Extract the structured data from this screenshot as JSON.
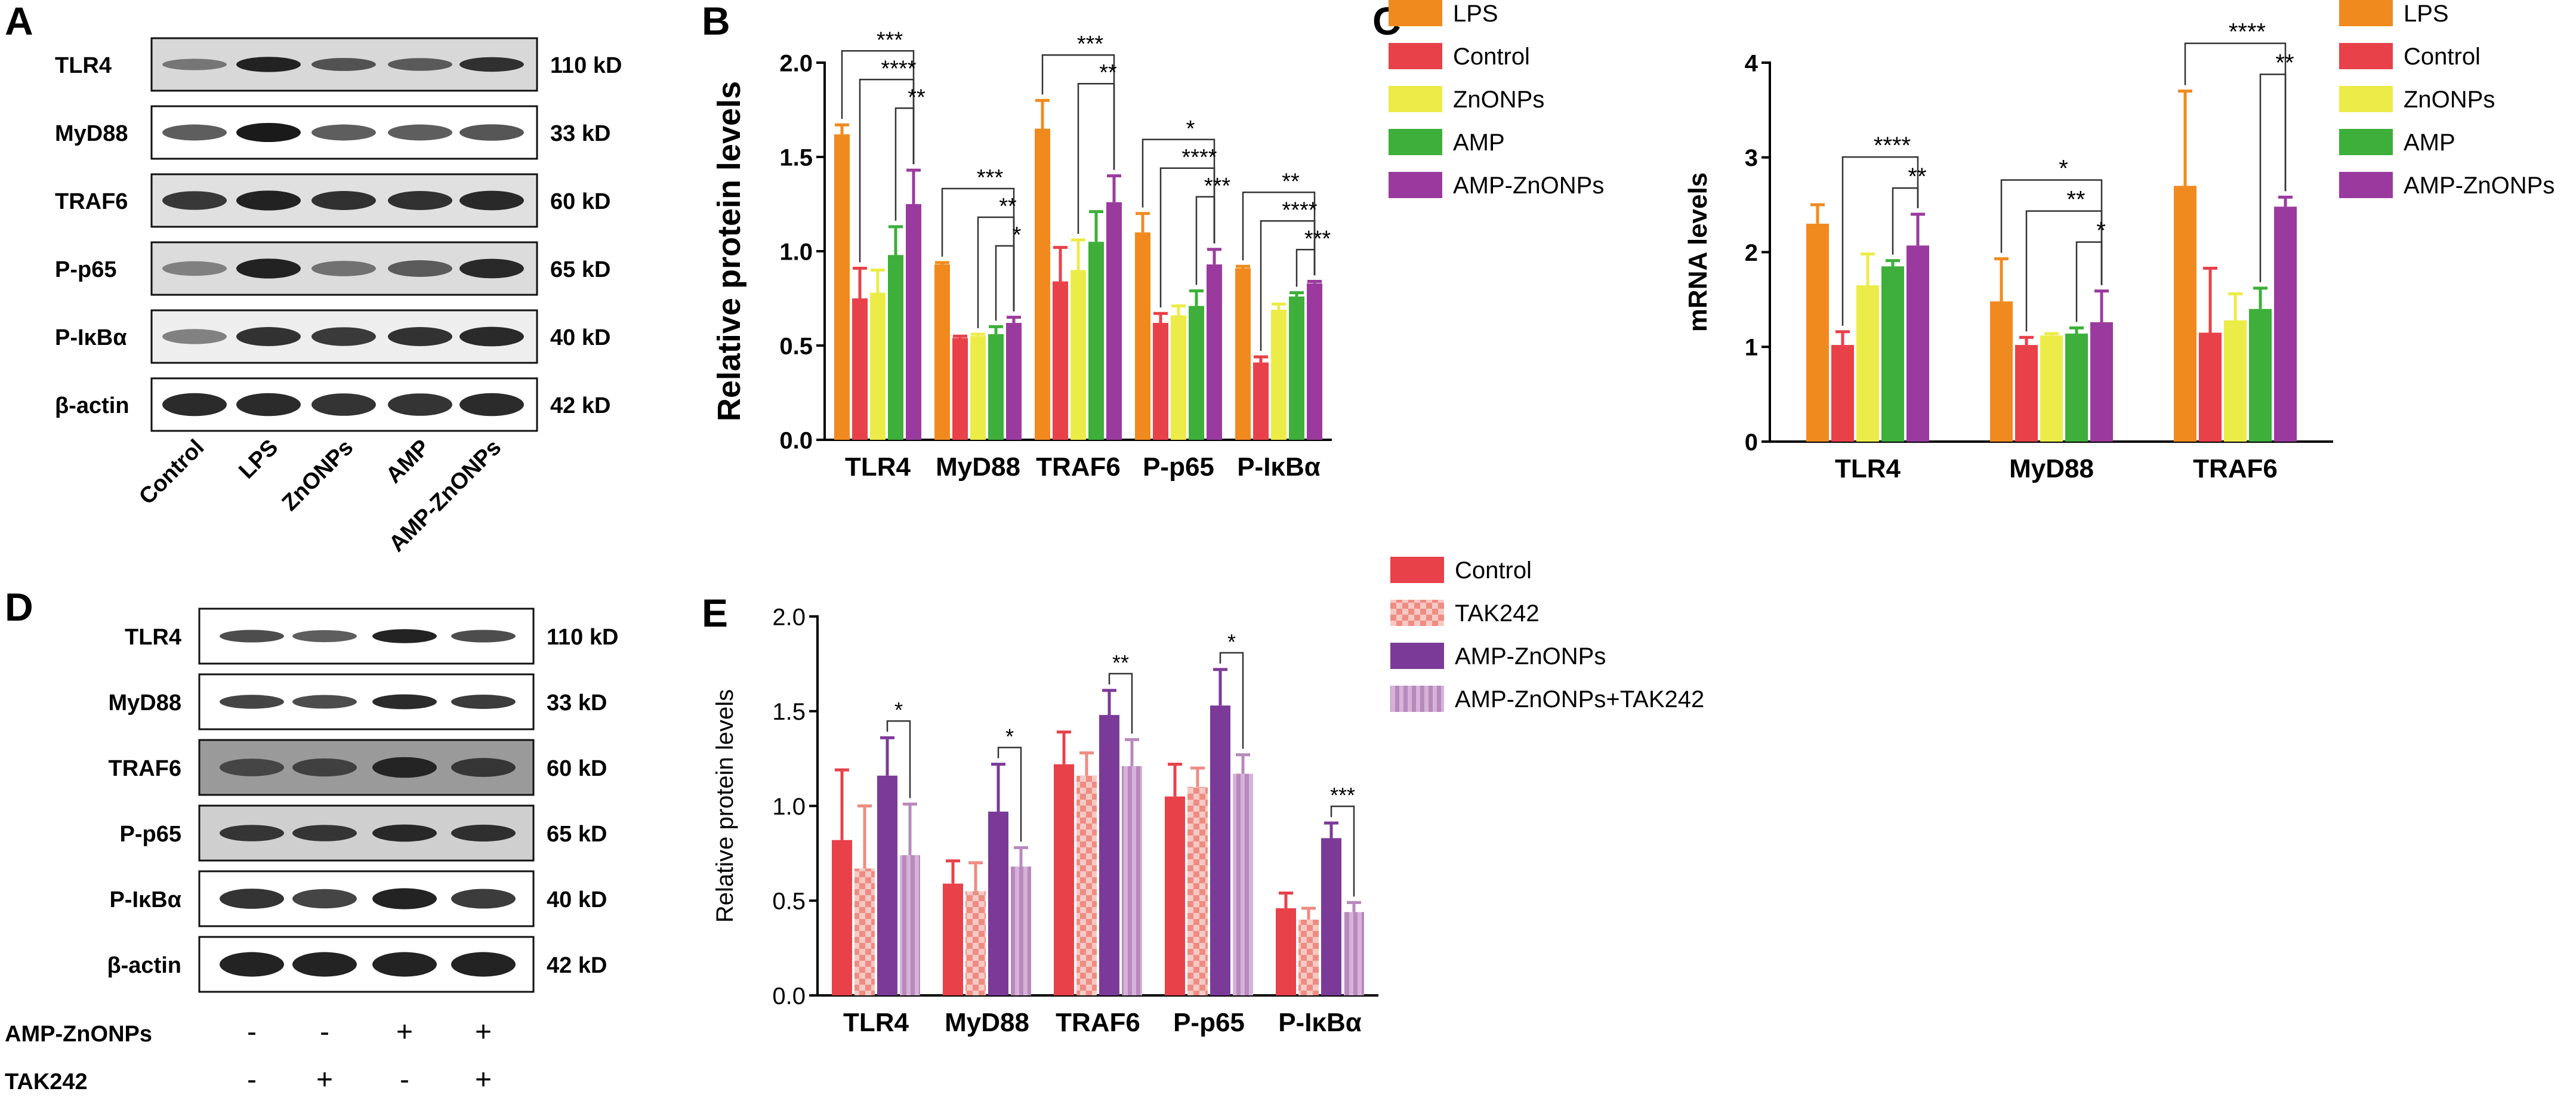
{
  "panels": {
    "A": {
      "letter": "A",
      "rows": [
        {
          "name": "TLR4",
          "size": "110 kD"
        },
        {
          "name": "MyD88",
          "size": "33 kD"
        },
        {
          "name": "TRAF6",
          "size": "60 kD"
        },
        {
          "name": "P-p65",
          "size": "65 kD"
        },
        {
          "name": "P-IκBα",
          "size": "40 kD"
        },
        {
          "name": "β-actin",
          "size": "42 kD"
        }
      ],
      "lanes": [
        "Control",
        "LPS",
        "ZnONPs",
        "AMP",
        "AMP-ZnONPs"
      ]
    },
    "D": {
      "letter": "D",
      "rows": [
        {
          "name": "TLR4",
          "size": "110 kD"
        },
        {
          "name": "MyD88",
          "size": "33 kD"
        },
        {
          "name": "TRAF6",
          "size": "60 kD"
        },
        {
          "name": "P-p65",
          "size": "65 kD"
        },
        {
          "name": "P-IκBα",
          "size": "40 kD"
        },
        {
          "name": "β-actin",
          "size": "42 kD"
        }
      ],
      "treatments": [
        {
          "name": "AMP-ZnONPs",
          "signs": [
            "-",
            "-",
            "+",
            "+"
          ]
        },
        {
          "name": "TAK242",
          "signs": [
            "-",
            "+",
            "-",
            "+"
          ]
        }
      ]
    }
  },
  "colors": {
    "LPS": "#F08A1E",
    "Control": "#E8414A",
    "ZnONPs": "#ECEC48",
    "AMP": "#3DAF3A",
    "AMP-ZnONPs": "#9B3A9E",
    "TAK242": "#F2A7A0",
    "AMP-ZnONPs+TAK242": "#C69ACB",
    "E_AMP-ZnONPs": "#7B3A98",
    "E_Control": "#E8414A"
  },
  "chart_data": [
    {
      "panel": "B",
      "type": "bar",
      "ylabel": "Relative protein levels",
      "ylim": [
        0,
        2.0
      ],
      "yticks": [
        "0.0",
        "0.5",
        "1.0",
        "1.5",
        "2.0"
      ],
      "categories": [
        "TLR4",
        "MyD88",
        "TRAF6",
        "P-p65",
        "P-IκBα"
      ],
      "series": [
        {
          "name": "LPS",
          "values": [
            1.62,
            0.93,
            1.65,
            1.1,
            0.91
          ],
          "errors": [
            0.05,
            0.01,
            0.15,
            0.1,
            0.01
          ]
        },
        {
          "name": "Control",
          "values": [
            0.75,
            0.54,
            0.84,
            0.62,
            0.41
          ],
          "errors": [
            0.16,
            0.01,
            0.18,
            0.05,
            0.03
          ]
        },
        {
          "name": "ZnONPs",
          "values": [
            0.78,
            0.55,
            0.9,
            0.66,
            0.69
          ],
          "errors": [
            0.12,
            0.01,
            0.16,
            0.05,
            0.03
          ]
        },
        {
          "name": "AMP",
          "values": [
            0.98,
            0.56,
            1.05,
            0.71,
            0.76
          ],
          "errors": [
            0.15,
            0.04,
            0.16,
            0.08,
            0.02
          ]
        },
        {
          "name": "AMP-ZnONPs",
          "values": [
            1.25,
            0.62,
            1.26,
            0.93,
            0.83
          ],
          "errors": [
            0.18,
            0.03,
            0.14,
            0.08,
            0.01
          ]
        }
      ],
      "significance": [
        {
          "category": 0,
          "from": 0,
          "to": 4,
          "label": "***",
          "top": true
        },
        {
          "category": 0,
          "from": 1,
          "to": 4,
          "label": "****"
        },
        {
          "category": 0,
          "from": 3,
          "to": 4,
          "label": "**"
        },
        {
          "category": 1,
          "from": 0,
          "to": 4,
          "label": "***"
        },
        {
          "category": 1,
          "from": 2,
          "to": 4,
          "label": "**"
        },
        {
          "category": 1,
          "from": 3,
          "to": 4,
          "label": "*"
        },
        {
          "category": 2,
          "from": 0,
          "to": 4,
          "label": "***"
        },
        {
          "category": 2,
          "from": 2,
          "to": 4,
          "label": "**"
        },
        {
          "category": 3,
          "from": 0,
          "to": 4,
          "label": "*"
        },
        {
          "category": 3,
          "from": 1,
          "to": 4,
          "label": "****"
        },
        {
          "category": 3,
          "from": 3,
          "to": 4,
          "label": "***"
        },
        {
          "category": 4,
          "from": 0,
          "to": 4,
          "label": "**"
        },
        {
          "category": 4,
          "from": 1,
          "to": 4,
          "label": "****"
        },
        {
          "category": 4,
          "from": 3,
          "to": 4,
          "label": "***"
        }
      ],
      "legend": [
        "LPS",
        "Control",
        "ZnONPs",
        "AMP",
        "AMP-ZnONPs"
      ]
    },
    {
      "panel": "C",
      "type": "bar",
      "ylabel": "mRNA levels",
      "ylim": [
        0,
        4
      ],
      "yticks": [
        "0",
        "1",
        "2",
        "3",
        "4"
      ],
      "categories": [
        "TLR4",
        "MyD88",
        "TRAF6"
      ],
      "series": [
        {
          "name": "LPS",
          "values": [
            2.3,
            1.48,
            2.7
          ],
          "errors": [
            0.2,
            0.45,
            1.0
          ]
        },
        {
          "name": "Control",
          "values": [
            1.02,
            1.02,
            1.15
          ],
          "errors": [
            0.14,
            0.08,
            0.68
          ]
        },
        {
          "name": "ZnONPs",
          "values": [
            1.65,
            1.12,
            1.28
          ],
          "errors": [
            0.33,
            0.02,
            0.28
          ]
        },
        {
          "name": "AMP",
          "values": [
            1.85,
            1.14,
            1.4
          ],
          "errors": [
            0.06,
            0.06,
            0.22
          ]
        },
        {
          "name": "AMP-ZnONPs",
          "values": [
            2.07,
            1.26,
            2.48
          ],
          "errors": [
            0.33,
            0.33,
            0.1
          ]
        }
      ],
      "significance": [
        {
          "category": 0,
          "from": 1,
          "to": 4,
          "label": "****"
        },
        {
          "category": 0,
          "from": 3,
          "to": 4,
          "label": "**"
        },
        {
          "category": 1,
          "from": 0,
          "to": 4,
          "label": "*"
        },
        {
          "category": 1,
          "from": 1,
          "to": 4,
          "label": "**"
        },
        {
          "category": 1,
          "from": 3,
          "to": 4,
          "label": "*"
        },
        {
          "category": 2,
          "from": 0,
          "to": 4,
          "label": "****"
        },
        {
          "category": 2,
          "from": 3,
          "to": 4,
          "label": "**"
        }
      ],
      "legend": [
        "LPS",
        "Control",
        "ZnONPs",
        "AMP",
        "AMP-ZnONPs"
      ]
    },
    {
      "panel": "E",
      "type": "bar",
      "ylabel": "Relative protein  levels",
      "ylim": [
        0,
        2.0
      ],
      "yticks": [
        "0.0",
        "0.5",
        "1.0",
        "1.5",
        "2.0"
      ],
      "categories": [
        "TLR4",
        "MyD88",
        "TRAF6",
        "P-p65",
        "P-IκBα"
      ],
      "series": [
        {
          "name": "Control",
          "values": [
            0.82,
            0.59,
            1.22,
            1.05,
            0.46
          ],
          "errors": [
            0.37,
            0.12,
            0.17,
            0.17,
            0.08
          ]
        },
        {
          "name": "TAK242",
          "values": [
            0.67,
            0.55,
            1.16,
            1.1,
            0.4
          ],
          "errors": [
            0.33,
            0.15,
            0.12,
            0.1,
            0.06
          ]
        },
        {
          "name": "AMP-ZnONPs",
          "values": [
            1.16,
            0.97,
            1.48,
            1.53,
            0.83
          ],
          "errors": [
            0.2,
            0.25,
            0.13,
            0.19,
            0.08
          ]
        },
        {
          "name": "AMP-ZnONPs+TAK242",
          "values": [
            0.74,
            0.68,
            1.21,
            1.17,
            0.44
          ],
          "errors": [
            0.27,
            0.1,
            0.14,
            0.1,
            0.05
          ]
        }
      ],
      "significance": [
        {
          "category": 0,
          "from": 2,
          "to": 3,
          "label": "*"
        },
        {
          "category": 1,
          "from": 2,
          "to": 3,
          "label": "*"
        },
        {
          "category": 2,
          "from": 2,
          "to": 3,
          "label": "**"
        },
        {
          "category": 3,
          "from": 2,
          "to": 3,
          "label": "*"
        },
        {
          "category": 4,
          "from": 2,
          "to": 3,
          "label": "***"
        }
      ],
      "legend": [
        "Control",
        "TAK242",
        "AMP-ZnONPs",
        "AMP-ZnONPs+TAK242"
      ]
    }
  ]
}
